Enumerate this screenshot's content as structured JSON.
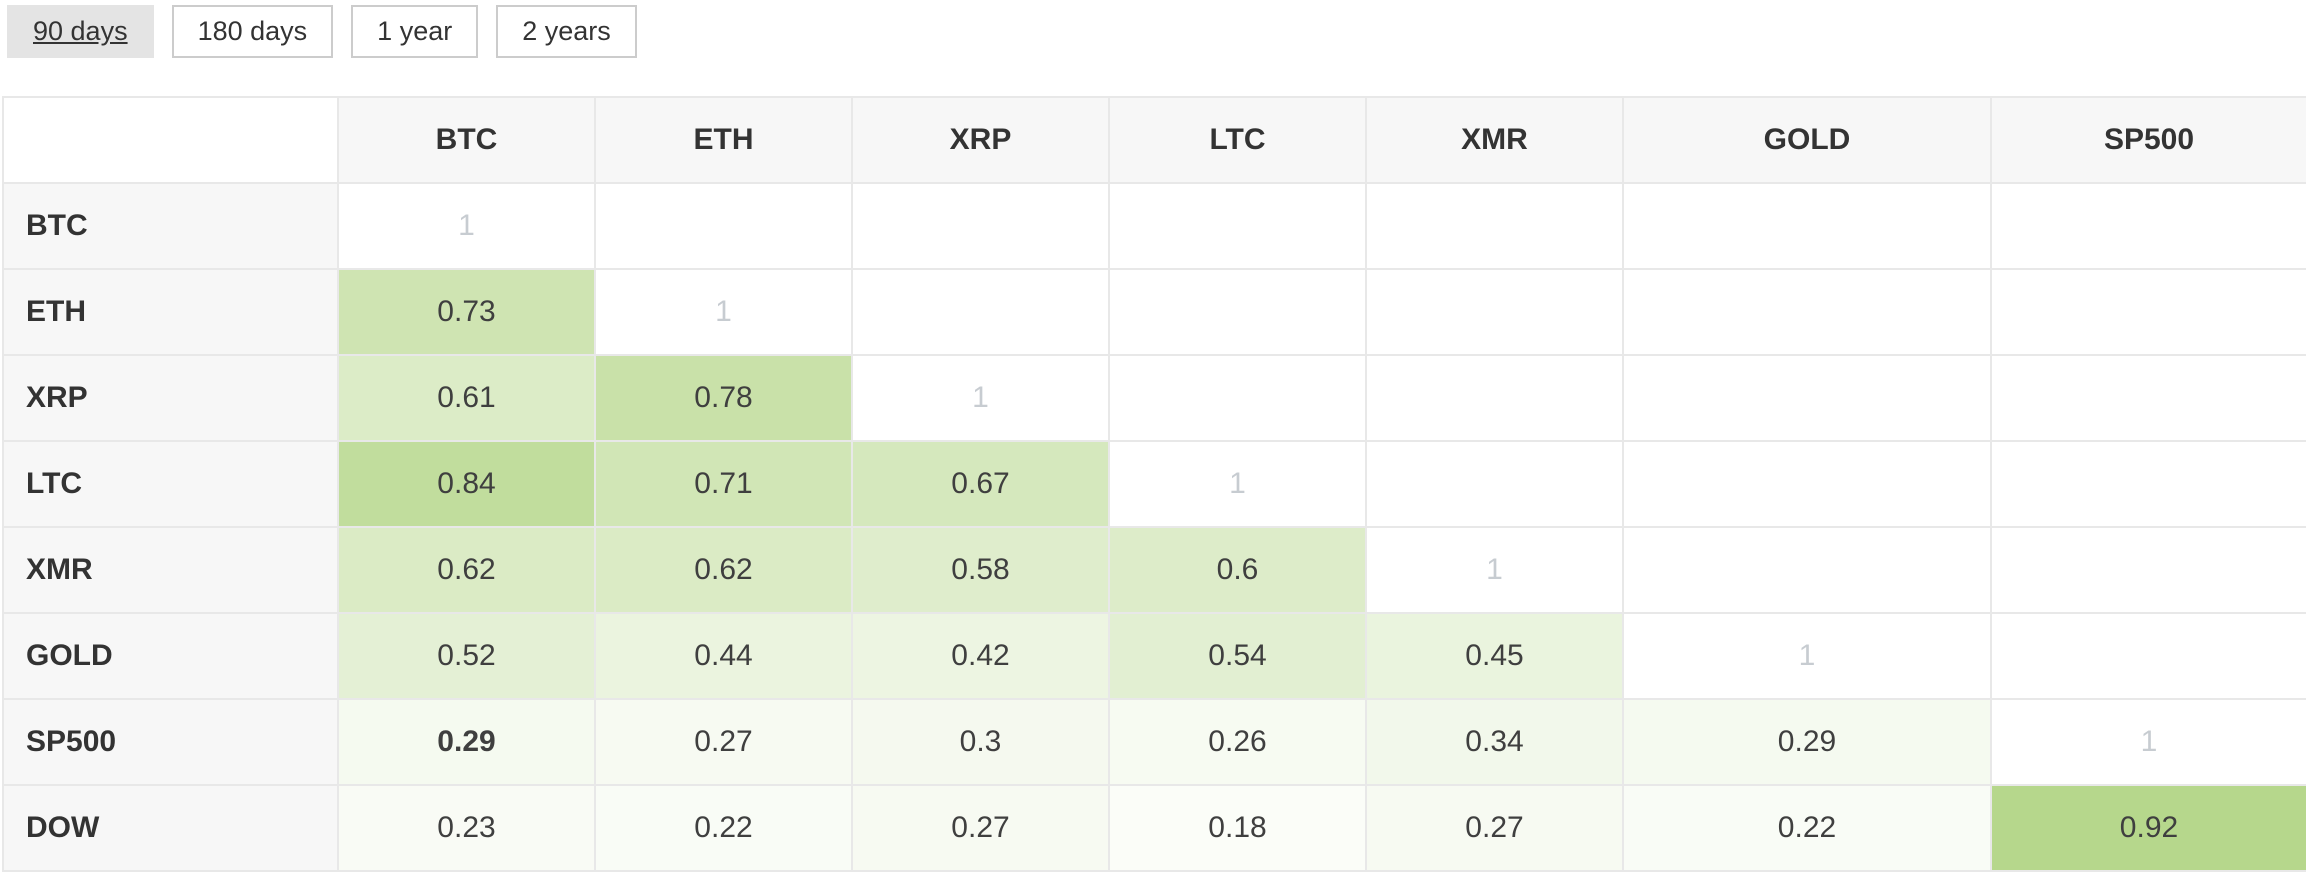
{
  "period_tabs": [
    {
      "label": "90 days",
      "active": true
    },
    {
      "label": "180 days",
      "active": false
    },
    {
      "label": "1 year",
      "active": false
    },
    {
      "label": "2 years",
      "active": false
    }
  ],
  "selected_period": "90 days",
  "colors": {
    "page_bg": "#ffffff",
    "header_bg": "#f7f7f7",
    "grid_border": "#e8e8e8",
    "label_text": "#333333",
    "value_text": "#3f3f3f",
    "diagonal_text": "#c7ccd1",
    "tab_text": "#333333",
    "tab_border": "#cccccc",
    "tab_active_bg": "#e4e4e4",
    "heat_base_color": "#abd17a"
  },
  "heat_exponent": 1.75,
  "chart_data": {
    "type": "heatmap",
    "columns": [
      "BTC",
      "ETH",
      "XRP",
      "LTC",
      "XMR",
      "GOLD",
      "SP500"
    ],
    "rows": [
      "BTC",
      "ETH",
      "XRP",
      "LTC",
      "XMR",
      "GOLD",
      "SP500",
      "DOW"
    ],
    "matrix": [
      [
        "1",
        "",
        "",
        "",
        "",
        "",
        ""
      ],
      [
        "0.73",
        "1",
        "",
        "",
        "",
        "",
        ""
      ],
      [
        "0.61",
        "0.78",
        "1",
        "",
        "",
        "",
        ""
      ],
      [
        "0.84",
        "0.71",
        "0.67",
        "1",
        "",
        "",
        ""
      ],
      [
        "0.62",
        "0.62",
        "0.58",
        "0.6",
        "1",
        "",
        ""
      ],
      [
        "0.52",
        "0.44",
        "0.42",
        "0.54",
        "0.45",
        "1",
        ""
      ],
      [
        "0.29",
        "0.27",
        "0.3",
        "0.26",
        "0.34",
        "0.29",
        "1"
      ],
      [
        "0.23",
        "0.22",
        "0.27",
        "0.18",
        "0.27",
        "0.22",
        "0.92"
      ]
    ],
    "bold_cells": [
      {
        "row": "SP500",
        "col": "BTC"
      }
    ],
    "value_range": [
      0,
      1
    ],
    "colormap": "white-to-green",
    "legend": "none",
    "grid": true
  }
}
